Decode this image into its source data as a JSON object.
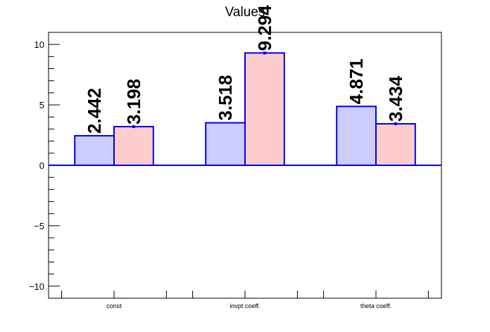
{
  "chart_data": {
    "type": "bar",
    "title": "Values",
    "xlabel": "",
    "ylabel": "",
    "categories": [
      "const",
      "invpt coeff.",
      "theta coeff."
    ],
    "series": [
      {
        "values": [
          2.442,
          3.518,
          4.871
        ],
        "fill": "#ccccff",
        "stroke": "#0000ee"
      },
      {
        "values": [
          3.198,
          9.294,
          3.434
        ],
        "fill": "#ffcccc",
        "stroke": "#0000ee"
      }
    ],
    "data_labels": [
      [
        "2.442",
        "3.518",
        "4.871"
      ],
      [
        "3.198",
        "9.294",
        "3.434"
      ]
    ],
    "error_bars": [
      [
        0.0,
        0.0,
        0.0
      ],
      [
        0.1,
        0.1,
        0.1
      ]
    ],
    "ylim": [
      -11,
      11
    ],
    "yticks": [
      -10,
      -5,
      0,
      5,
      10
    ],
    "ytick_labels": [
      "−10",
      "−5",
      "0",
      "5",
      "10"
    ],
    "grid": false,
    "legend": "none",
    "baseline": 0,
    "axis_color": "#000000",
    "baseline_color": "#0000ee"
  }
}
